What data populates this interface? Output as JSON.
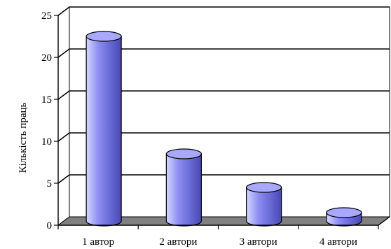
{
  "chart_data": {
    "type": "bar",
    "title": "",
    "xlabel": "",
    "ylabel": "Кількість праць",
    "categories": [
      "1 автор",
      "2 автори",
      "3 автори",
      "4 автори"
    ],
    "values": [
      22,
      8,
      4,
      1
    ],
    "ylim": [
      0,
      25
    ],
    "yticks": [
      0,
      5,
      10,
      15,
      20,
      25
    ],
    "grid": true,
    "legend": "none",
    "colors": {
      "bar_fill": "#8c8cf2",
      "bar_highlight": "#d6d6ff",
      "bar_shadow": "#4848b8",
      "bar_top": "#a8a8ff",
      "floor": "#808080",
      "gridline": "#000000"
    }
  }
}
